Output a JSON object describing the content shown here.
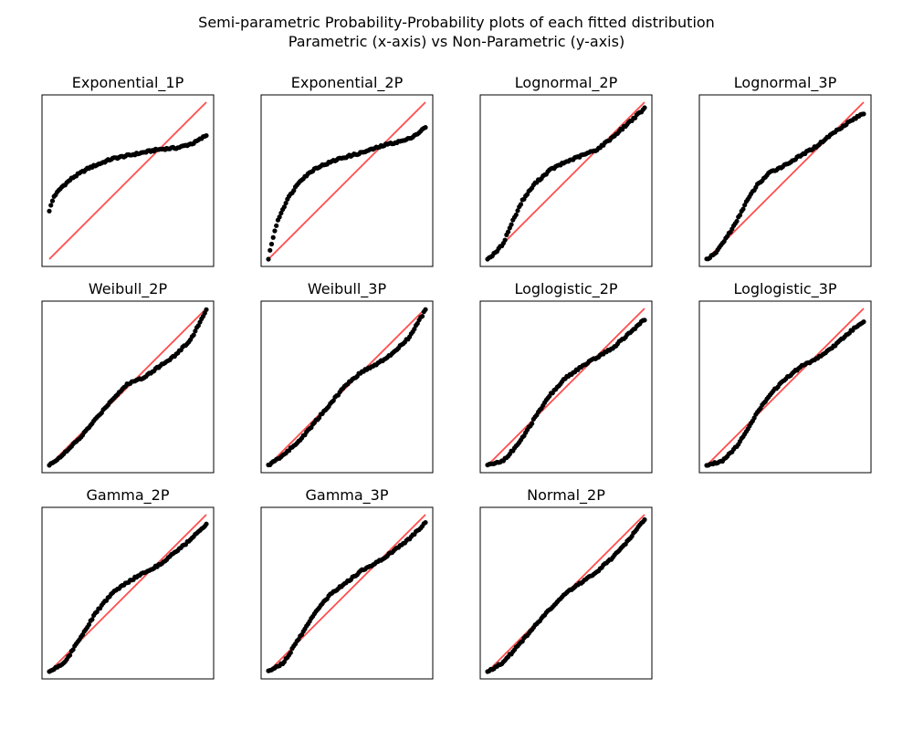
{
  "figure": {
    "title_line1": "Semi-parametric Probability-Probability plots of each fitted distribution",
    "title_line2": "Parametric (x-axis) vs Non-Parametric (y-axis)"
  },
  "style": {
    "point_color": "#000000",
    "reference_line_color": "#ff4d4d",
    "background": "#ffffff"
  },
  "chart_data": [
    {
      "type": "scatter",
      "title": "Exponential_1P",
      "axes_visible": false,
      "xlim": [
        0,
        1
      ],
      "ylim": [
        0,
        1
      ],
      "reference_line": "y=x",
      "curve": [
        [
          0,
          0.31
        ],
        [
          0.03,
          0.4
        ],
        [
          0.08,
          0.46
        ],
        [
          0.15,
          0.52
        ],
        [
          0.25,
          0.58
        ],
        [
          0.4,
          0.64
        ],
        [
          0.55,
          0.67
        ],
        [
          0.7,
          0.7
        ],
        [
          0.82,
          0.71
        ],
        [
          0.92,
          0.74
        ],
        [
          0.97,
          0.77
        ],
        [
          1,
          0.79
        ]
      ]
    },
    {
      "type": "scatter",
      "title": "Exponential_2P",
      "axes_visible": false,
      "xlim": [
        0,
        1
      ],
      "ylim": [
        0,
        1
      ],
      "reference_line": "y=x",
      "curve": [
        [
          0,
          0
        ],
        [
          0.02,
          0.1
        ],
        [
          0.06,
          0.25
        ],
        [
          0.12,
          0.38
        ],
        [
          0.2,
          0.5
        ],
        [
          0.3,
          0.58
        ],
        [
          0.45,
          0.64
        ],
        [
          0.6,
          0.68
        ],
        [
          0.75,
          0.73
        ],
        [
          0.88,
          0.76
        ],
        [
          0.95,
          0.8
        ],
        [
          1,
          0.84
        ]
      ]
    },
    {
      "type": "scatter",
      "title": "Lognormal_2P",
      "axes_visible": false,
      "xlim": [
        0,
        1
      ],
      "ylim": [
        0,
        1
      ],
      "reference_line": "y=x",
      "curve": [
        [
          0,
          0
        ],
        [
          0.05,
          0.04
        ],
        [
          0.1,
          0.1
        ],
        [
          0.15,
          0.22
        ],
        [
          0.22,
          0.37
        ],
        [
          0.3,
          0.48
        ],
        [
          0.4,
          0.57
        ],
        [
          0.5,
          0.62
        ],
        [
          0.6,
          0.66
        ],
        [
          0.7,
          0.7
        ],
        [
          0.8,
          0.78
        ],
        [
          0.9,
          0.87
        ],
        [
          1,
          0.96
        ]
      ]
    },
    {
      "type": "scatter",
      "title": "Lognormal_3P",
      "axes_visible": false,
      "xlim": [
        0,
        1
      ],
      "ylim": [
        0,
        1
      ],
      "reference_line": "y=x",
      "curve": [
        [
          0,
          0
        ],
        [
          0.05,
          0.03
        ],
        [
          0.1,
          0.1
        ],
        [
          0.18,
          0.22
        ],
        [
          0.25,
          0.36
        ],
        [
          0.32,
          0.47
        ],
        [
          0.4,
          0.55
        ],
        [
          0.5,
          0.6
        ],
        [
          0.6,
          0.66
        ],
        [
          0.7,
          0.72
        ],
        [
          0.8,
          0.8
        ],
        [
          0.9,
          0.87
        ],
        [
          1,
          0.93
        ]
      ]
    },
    {
      "type": "scatter",
      "title": "Weibull_2P",
      "axes_visible": false,
      "xlim": [
        0,
        1
      ],
      "ylim": [
        0,
        1
      ],
      "reference_line": "y=x",
      "curve": [
        [
          0,
          0
        ],
        [
          0.1,
          0.08
        ],
        [
          0.2,
          0.18
        ],
        [
          0.3,
          0.3
        ],
        [
          0.4,
          0.42
        ],
        [
          0.5,
          0.52
        ],
        [
          0.6,
          0.56
        ],
        [
          0.7,
          0.63
        ],
        [
          0.8,
          0.7
        ],
        [
          0.9,
          0.8
        ],
        [
          1,
          0.99
        ]
      ]
    },
    {
      "type": "scatter",
      "title": "Weibull_3P",
      "axes_visible": false,
      "xlim": [
        0,
        1
      ],
      "ylim": [
        0,
        1
      ],
      "reference_line": "y=x",
      "curve": [
        [
          0,
          0
        ],
        [
          0.1,
          0.07
        ],
        [
          0.2,
          0.16
        ],
        [
          0.3,
          0.28
        ],
        [
          0.4,
          0.4
        ],
        [
          0.5,
          0.52
        ],
        [
          0.6,
          0.6
        ],
        [
          0.7,
          0.65
        ],
        [
          0.8,
          0.72
        ],
        [
          0.9,
          0.82
        ],
        [
          1,
          0.99
        ]
      ]
    },
    {
      "type": "scatter",
      "title": "Loglogistic_2P",
      "axes_visible": false,
      "xlim": [
        0,
        1
      ],
      "ylim": [
        0,
        1
      ],
      "reference_line": "y=x",
      "curve": [
        [
          0,
          0
        ],
        [
          0.1,
          0.03
        ],
        [
          0.2,
          0.14
        ],
        [
          0.3,
          0.3
        ],
        [
          0.4,
          0.45
        ],
        [
          0.5,
          0.56
        ],
        [
          0.6,
          0.63
        ],
        [
          0.7,
          0.69
        ],
        [
          0.8,
          0.75
        ],
        [
          0.9,
          0.84
        ],
        [
          1,
          0.93
        ]
      ]
    },
    {
      "type": "scatter",
      "title": "Loglogistic_3P",
      "axes_visible": false,
      "xlim": [
        0,
        1
      ],
      "ylim": [
        0,
        1
      ],
      "reference_line": "y=x",
      "curve": [
        [
          0,
          0
        ],
        [
          0.1,
          0.03
        ],
        [
          0.2,
          0.13
        ],
        [
          0.3,
          0.3
        ],
        [
          0.4,
          0.45
        ],
        [
          0.5,
          0.55
        ],
        [
          0.6,
          0.63
        ],
        [
          0.7,
          0.68
        ],
        [
          0.8,
          0.75
        ],
        [
          0.9,
          0.84
        ],
        [
          1,
          0.92
        ]
      ]
    },
    {
      "type": "scatter",
      "title": "Gamma_2P",
      "axes_visible": false,
      "xlim": [
        0,
        1
      ],
      "ylim": [
        0,
        1
      ],
      "reference_line": "y=x",
      "curve": [
        [
          0,
          0
        ],
        [
          0.1,
          0.06
        ],
        [
          0.2,
          0.22
        ],
        [
          0.3,
          0.38
        ],
        [
          0.4,
          0.5
        ],
        [
          0.5,
          0.57
        ],
        [
          0.6,
          0.63
        ],
        [
          0.7,
          0.68
        ],
        [
          0.8,
          0.76
        ],
        [
          0.9,
          0.84
        ],
        [
          1,
          0.94
        ]
      ]
    },
    {
      "type": "scatter",
      "title": "Gamma_3P",
      "axes_visible": false,
      "xlim": [
        0,
        1
      ],
      "ylim": [
        0,
        1
      ],
      "reference_line": "y=x",
      "curve": [
        [
          0,
          0
        ],
        [
          0.1,
          0.06
        ],
        [
          0.2,
          0.22
        ],
        [
          0.3,
          0.38
        ],
        [
          0.4,
          0.5
        ],
        [
          0.5,
          0.57
        ],
        [
          0.6,
          0.65
        ],
        [
          0.7,
          0.7
        ],
        [
          0.8,
          0.77
        ],
        [
          0.9,
          0.85
        ],
        [
          1,
          0.95
        ]
      ]
    },
    {
      "type": "scatter",
      "title": "Normal_2P",
      "axes_visible": false,
      "xlim": [
        0,
        1
      ],
      "ylim": [
        0,
        1
      ],
      "reference_line": "y=x",
      "curve": [
        [
          0,
          0
        ],
        [
          0.1,
          0.06
        ],
        [
          0.2,
          0.17
        ],
        [
          0.3,
          0.29
        ],
        [
          0.4,
          0.4
        ],
        [
          0.5,
          0.5
        ],
        [
          0.6,
          0.57
        ],
        [
          0.7,
          0.64
        ],
        [
          0.8,
          0.73
        ],
        [
          0.9,
          0.84
        ],
        [
          1,
          0.97
        ]
      ]
    }
  ]
}
